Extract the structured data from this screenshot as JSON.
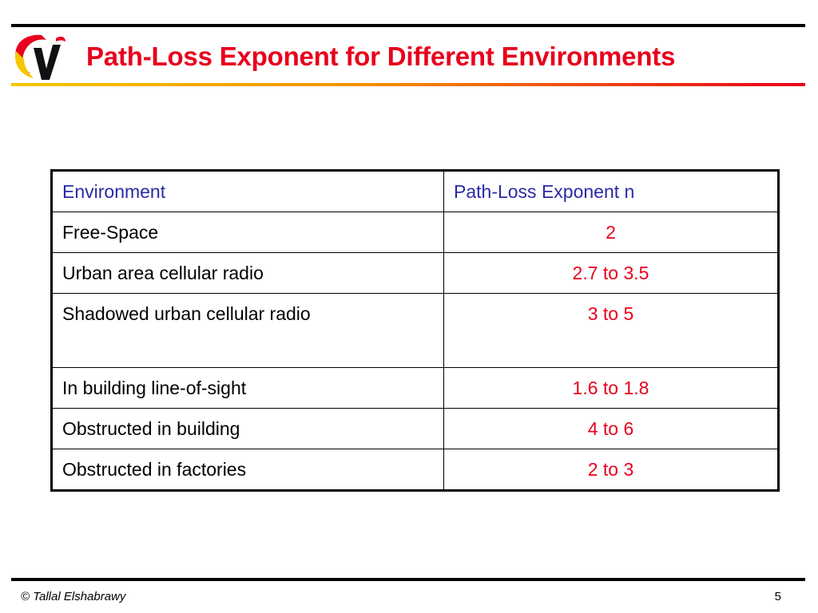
{
  "slide": {
    "title": "Path-Loss Exponent for Different Environments",
    "footer": "© Tallal Elshabrawy",
    "page_number": "5"
  },
  "table": {
    "headers": [
      "Environment",
      "Path-Loss Exponent n"
    ],
    "rows": [
      {
        "environment": "Free-Space",
        "exponent": "2"
      },
      {
        "environment": "Urban area cellular radio",
        "exponent": "2.7 to 3.5"
      },
      {
        "environment": "Shadowed urban cellular radio",
        "exponent": "3 to 5"
      },
      {
        "environment": "In building line-of-sight",
        "exponent": "1.6 to 1.8"
      },
      {
        "environment": "Obstructed in building",
        "exponent": "4 to 6"
      },
      {
        "environment": "Obstructed in factories",
        "exponent": "2 to 3"
      }
    ]
  },
  "colors": {
    "title": "#e8001c",
    "header_text": "#2a2aa5",
    "value_text": "#e8001c",
    "accent_yellow": "#f7c600"
  },
  "icons": {
    "logo": "university-logo-icon"
  }
}
